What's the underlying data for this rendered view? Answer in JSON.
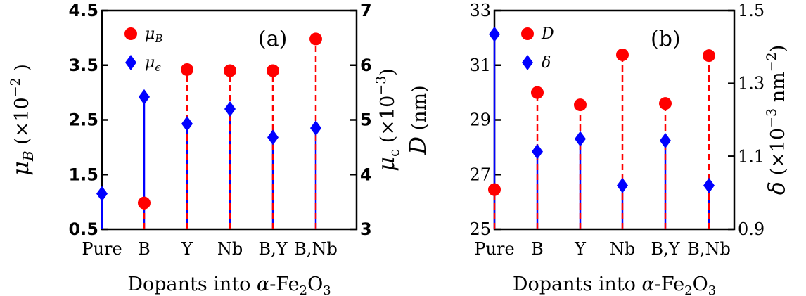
{
  "chart_data": [
    {
      "type": "scatter",
      "panel_label": "(a)",
      "categories": [
        "Pure",
        "B",
        "Y",
        "Nb",
        "B,Y",
        "B,Nb"
      ],
      "xlabel": "Dopants into α-Fe₂O₃",
      "xlabel_parts": {
        "pre": "Dopants into ",
        "alpha": "α",
        "main": "-Fe",
        "sub1": "2",
        "o": "O",
        "sub2": "3"
      },
      "left_axis": {
        "ylim": [
          0.5,
          4.5
        ],
        "ticks": [
          "0.5",
          "1.5",
          "2.5",
          "3.5",
          "4.5"
        ],
        "tick_values": [
          0.5,
          1.5,
          2.5,
          3.5,
          4.5
        ],
        "label": "μB (×10⁻²)",
        "label_parts": {
          "sym": "μ",
          "sub": "B",
          "mult": "(×10",
          "exp": "−2",
          "close": ")"
        }
      },
      "right_axis": {
        "ylim": [
          3,
          7
        ],
        "ticks": [
          "3",
          "4",
          "5",
          "6",
          "7"
        ],
        "tick_values": [
          3,
          4,
          5,
          6,
          7
        ],
        "label": "μϵ (×10⁻³)",
        "label_parts": {
          "sym": "μ",
          "sub": "ϵ",
          "mult": "(×10",
          "exp": "−3",
          "close": ")"
        }
      },
      "series": [
        {
          "name": "μB",
          "name_parts": {
            "sym": "μ",
            "sub": "B"
          },
          "axis": "left",
          "marker": "circle",
          "color": "#ff0000",
          "stem_color": "#ff0000",
          "stem_style": "dashed",
          "values": [
            null,
            0.98,
            3.42,
            3.4,
            3.4,
            3.98
          ]
        },
        {
          "name": "μϵ",
          "name_parts": {
            "sym": "μ",
            "sub": "ϵ"
          },
          "axis": "right",
          "marker": "diamond",
          "color": "#0000ff",
          "stem_color": "#0000ff",
          "stem_style": "solid",
          "values": [
            3.65,
            5.42,
            4.93,
            5.2,
            4.68,
            4.85
          ]
        }
      ],
      "legend_position": "top-left",
      "grid": false
    },
    {
      "type": "scatter",
      "panel_label": "(b)",
      "categories": [
        "Pure",
        "B",
        "Y",
        "Nb",
        "B,Y",
        "B,Nb"
      ],
      "xlabel": "Dopants into α-Fe₂O₃",
      "xlabel_parts": {
        "pre": "Dopants into ",
        "alpha": "α",
        "main": "-Fe",
        "sub1": "2",
        "o": "O",
        "sub2": "3"
      },
      "left_axis": {
        "ylim": [
          25,
          33
        ],
        "ticks": [
          "25",
          "27",
          "29",
          "31",
          "33"
        ],
        "tick_values": [
          25,
          27,
          29,
          31,
          33
        ],
        "label": "D (nm)",
        "label_parts": {
          "sym": "D",
          "unit": "(nm)"
        }
      },
      "right_axis": {
        "ylim": [
          0.9,
          1.5
        ],
        "ticks": [
          "0.9",
          "1.1",
          "1.3",
          "1.5"
        ],
        "tick_values": [
          0.9,
          1.1,
          1.3,
          1.5
        ],
        "label": "δ (×10⁻³ nm⁻²)",
        "label_parts": {
          "sym": "δ",
          "mult": "(×10",
          "exp": "−3",
          "unit": " nm",
          "exp2": "−2",
          "close": ")"
        }
      },
      "series": [
        {
          "name": "D",
          "name_parts": {
            "sym": "D"
          },
          "axis": "left",
          "marker": "circle",
          "color": "#ff0000",
          "stem_color": "#ff0000",
          "stem_style": "dashed",
          "values": [
            26.45,
            30.0,
            29.55,
            31.38,
            29.6,
            31.35
          ]
        },
        {
          "name": "δ",
          "name_parts": {
            "sym": "δ"
          },
          "axis": "right",
          "marker": "diamond",
          "color": "#0000ff",
          "stem_color": "#0000ff",
          "stem_style": "solid",
          "values": [
            1.435,
            1.113,
            1.148,
            1.02,
            1.143,
            1.02
          ]
        }
      ],
      "legend_position": "top-left",
      "grid": false
    }
  ]
}
